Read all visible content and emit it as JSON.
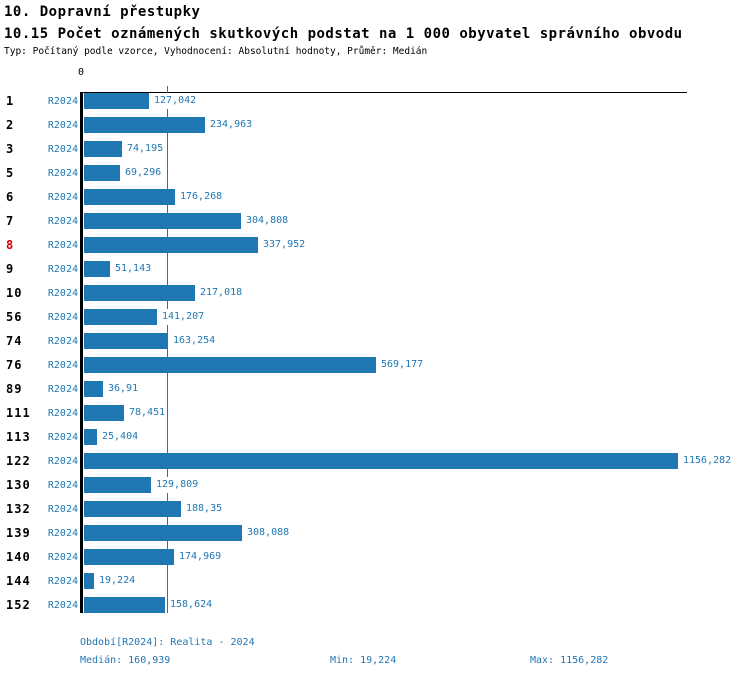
{
  "header": {
    "title": "10. Dopravní přestupky",
    "subtitle": "10.15 Počet oznámených skutkových podstat na 1 000 obyvatel správního obvodu",
    "meta": "Typ: Počítaný podle vzorce, Vyhodnocení: Absolutní hodnoty, Průměr: Medián"
  },
  "colors": {
    "bar_blue": "#1f77b4",
    "text_blue": "#1f77b4",
    "highlight_red": "#dd0000",
    "axis_black": "#000000"
  },
  "chart_data": {
    "type": "bar",
    "orientation": "horizontal",
    "title": "10.15 Počet oznámených skutkových podstat na 1 000 obyvatel správního obvodu",
    "axis_zero_label": "0",
    "series_label": "R2024",
    "categories": [
      "1",
      "2",
      "3",
      "5",
      "6",
      "7",
      "8",
      "9",
      "10",
      "56",
      "74",
      "76",
      "89",
      "111",
      "113",
      "122",
      "130",
      "132",
      "139",
      "140",
      "144",
      "152"
    ],
    "values": [
      127.042,
      234.963,
      74.195,
      69.296,
      176.268,
      304.808,
      337.952,
      51.143,
      217.018,
      141.207,
      163.254,
      569.177,
      36.91,
      78.451,
      25.404,
      1156.282,
      129.809,
      188.35,
      308.088,
      174.969,
      19.224,
      158.624
    ],
    "value_labels": [
      "127,042",
      "234,963",
      "74,195",
      "69,296",
      "176,268",
      "304,808",
      "337,952",
      "51,143",
      "217,018",
      "141,207",
      "163,254",
      "569,177",
      "36,91",
      "78,451",
      "25,404",
      "1156,282",
      "129,809",
      "188,35",
      "308,088",
      "174,969",
      "19,224",
      "158,624"
    ],
    "highlighted_category": "8",
    "median": {
      "value": 160.939,
      "label": "160,939"
    },
    "min": {
      "value": 19.224,
      "label": "19,224"
    },
    "max": {
      "value": 1156.282,
      "label": "1156,282"
    },
    "xlim": [
      0,
      1174
    ],
    "grid": false,
    "legend": false
  },
  "footer": {
    "period": "Období[R2024]: Realita - 2024",
    "median": "Medián: 160,939",
    "min": "Min: 19,224",
    "max": "Max: 1156,282"
  }
}
